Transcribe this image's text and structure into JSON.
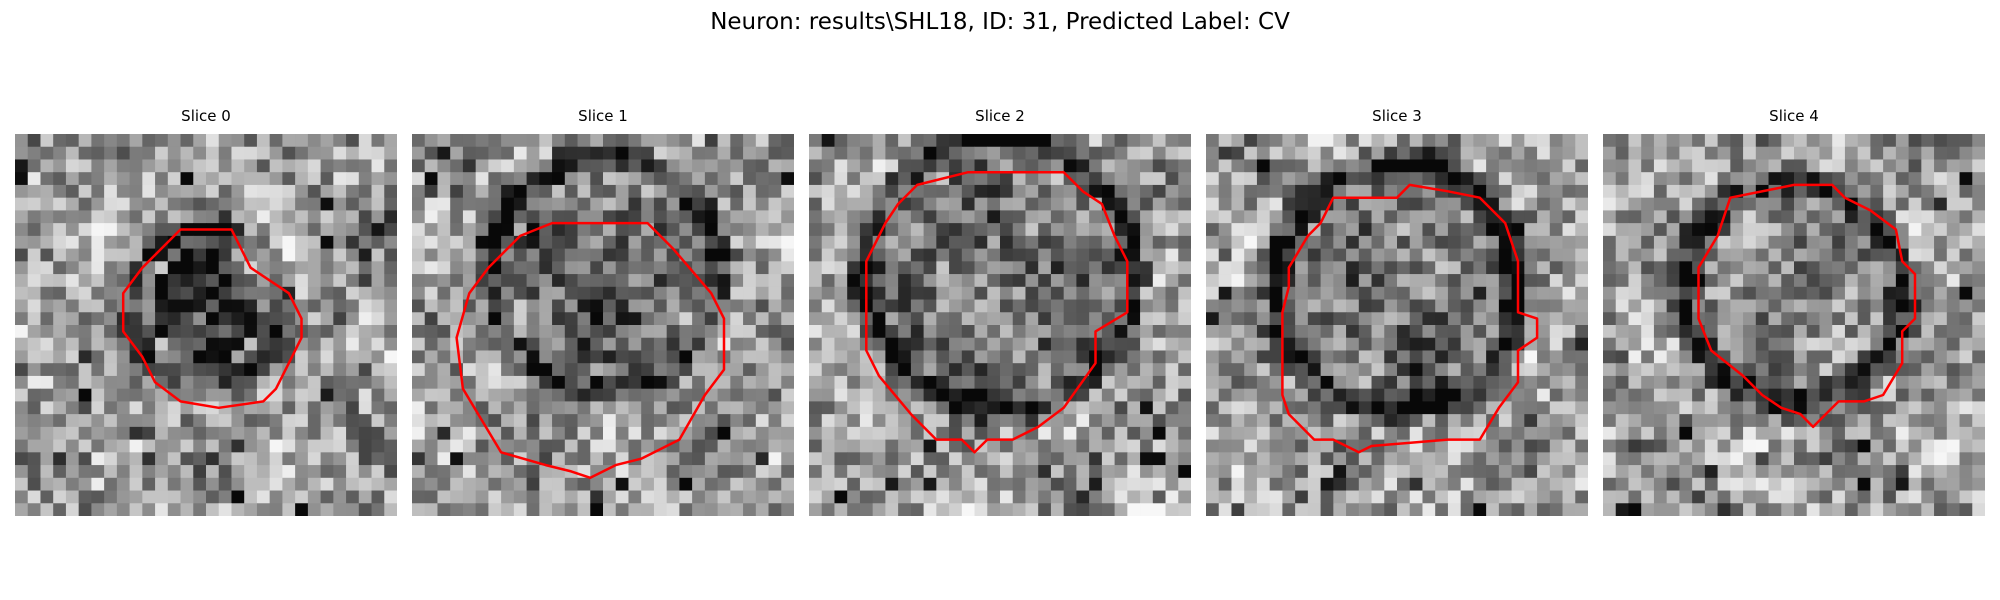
{
  "figure": {
    "title": "Neuron: results\\SHL18, ID: 31, Predicted Label: CV"
  },
  "panels": [
    {
      "title": "Slice 0"
    },
    {
      "title": "Slice 1"
    },
    {
      "title": "Slice 2"
    },
    {
      "title": "Slice 3"
    },
    {
      "title": "Slice 4"
    }
  ],
  "colors": {
    "background": "#ffffff",
    "contour": "#ff0000",
    "image_colormap": "grayscale"
  }
}
